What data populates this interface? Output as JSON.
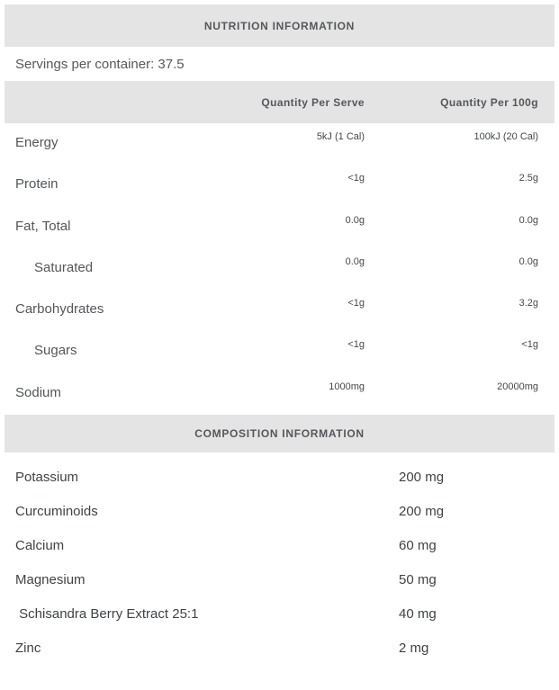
{
  "nutrition": {
    "title": "NUTRITION INFORMATION",
    "servings": "Servings per container: 37.5",
    "columns": [
      "Quantity Per Serve",
      "Quantity Per 100g"
    ],
    "rows": [
      {
        "label": "Energy",
        "per_serve": "5kJ (1 Cal)",
        "per_100g": "100kJ (20 Cal)",
        "indent": false
      },
      {
        "label": "Protein",
        "per_serve": "<1g",
        "per_100g": "2.5g",
        "indent": false
      },
      {
        "label": "Fat, Total",
        "per_serve": "0.0g",
        "per_100g": "0.0g",
        "indent": false
      },
      {
        "label": "Saturated",
        "per_serve": "0.0g",
        "per_100g": "0.0g",
        "indent": true
      },
      {
        "label": "Carbohydrates",
        "per_serve": "<1g",
        "per_100g": "3.2g",
        "indent": false
      },
      {
        "label": "Sugars",
        "per_serve": "<1g",
        "per_100g": "<1g",
        "indent": true
      },
      {
        "label": "Sodium",
        "per_serve": "1000mg",
        "per_100g": "20000mg",
        "indent": false
      }
    ]
  },
  "composition": {
    "title": "COMPOSITION INFORMATION",
    "rows": [
      {
        "label": "Potassium",
        "amount": "200 mg"
      },
      {
        "label": "Curcuminoids",
        "amount": "200 mg"
      },
      {
        "label": "Calcium",
        "amount": "60 mg"
      },
      {
        "label": "Magnesium",
        "amount": "50 mg"
      },
      {
        "label": " Schisandra Berry Extract 25:1",
        "amount": "40 mg"
      },
      {
        "label": "Zinc",
        "amount": "2 mg"
      }
    ]
  },
  "colors": {
    "bar_background": "#e4e4e4",
    "heading_text": "#55575c",
    "label_text": "#53565a",
    "value_text": "#45474b",
    "composition_text": "#3f4246"
  }
}
